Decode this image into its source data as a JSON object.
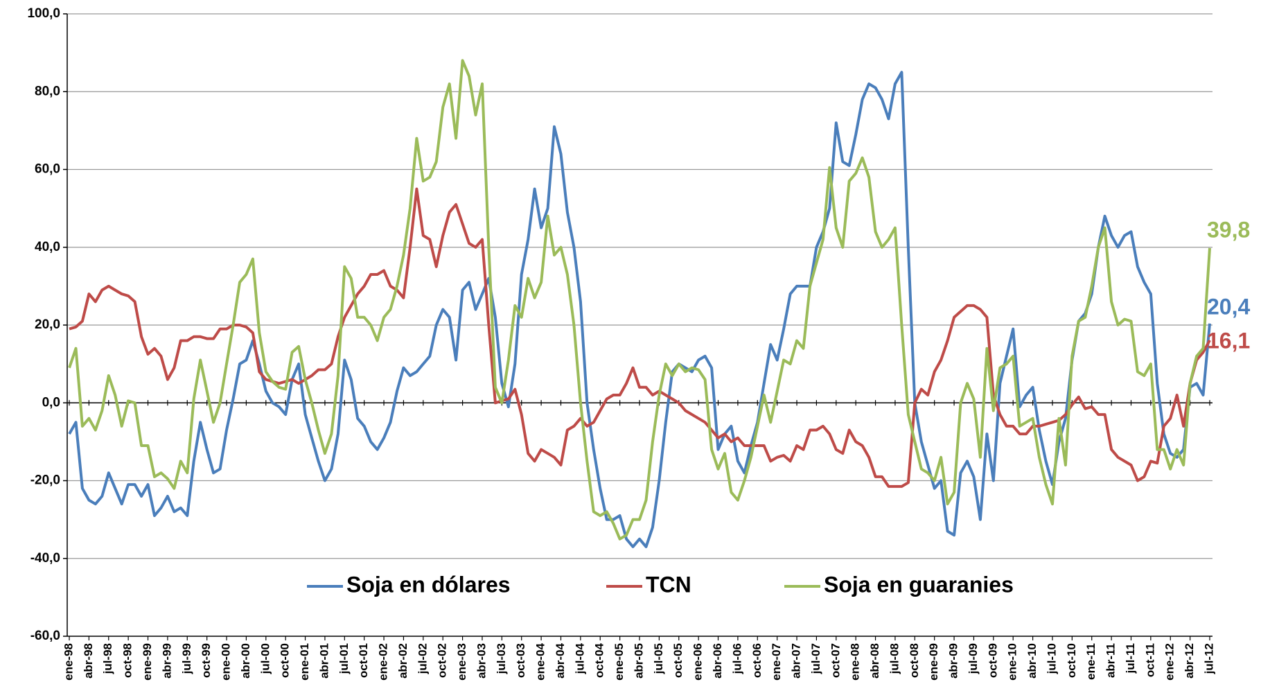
{
  "chart_data": {
    "type": "line",
    "categories": [
      "ene-98",
      null,
      null,
      "abr-98",
      null,
      null,
      "jul-98",
      null,
      null,
      "oct-98",
      null,
      null,
      "ene-99",
      null,
      null,
      "abr-99",
      null,
      null,
      "jul-99",
      null,
      null,
      "oct-99",
      null,
      null,
      "ene-00",
      null,
      null,
      "abr-00",
      null,
      null,
      "jul-00",
      null,
      null,
      "oct-00",
      null,
      null,
      "ene-01",
      null,
      null,
      "abr-01",
      null,
      null,
      "jul-01",
      null,
      null,
      "oct-01",
      null,
      null,
      "ene-02",
      null,
      null,
      "abr-02",
      null,
      null,
      "jul-02",
      null,
      null,
      "oct-02",
      null,
      null,
      "ene-03",
      null,
      null,
      "abr-03",
      null,
      null,
      "jul-03",
      null,
      null,
      "oct-03",
      null,
      null,
      "ene-04",
      null,
      null,
      "abr-04",
      null,
      null,
      "jul-04",
      null,
      null,
      "oct-04",
      null,
      null,
      "ene-05",
      null,
      null,
      "abr-05",
      null,
      null,
      "jul-05",
      null,
      null,
      "oct-05",
      null,
      null,
      "ene-06",
      null,
      null,
      "abr-06",
      null,
      null,
      "jul-06",
      null,
      null,
      "oct-06",
      null,
      null,
      "ene-07",
      null,
      null,
      "abr-07",
      null,
      null,
      "jul-07",
      null,
      null,
      "oct-07",
      null,
      null,
      "ene-08",
      null,
      null,
      "abr-08",
      null,
      null,
      "jul-08",
      null,
      null,
      "oct-08",
      null,
      null,
      "ene-09",
      null,
      null,
      "abr-09",
      null,
      null,
      "jul-09",
      null,
      null,
      "oct-09",
      null,
      null,
      "ene-10",
      null,
      null,
      "abr-10",
      null,
      null,
      "jul-10",
      null,
      null,
      "oct-10",
      null,
      null,
      "ene-11",
      null,
      null,
      "abr-11",
      null,
      null,
      "jul-11",
      null,
      null,
      "oct-11",
      null,
      null,
      "ene-12",
      null,
      null,
      "abr-12",
      null,
      null,
      "jul-12"
    ],
    "series": [
      {
        "name": "Soja en dólares",
        "color": "#4a7ebb",
        "end_label": "20,4",
        "values": [
          -8,
          -5,
          -22,
          -25,
          -26,
          -24,
          -18,
          -22,
          -26,
          -21,
          -21,
          -24,
          -21,
          -29,
          -27,
          -24,
          -28,
          -27,
          -29,
          -15,
          -5,
          -12,
          -18,
          -17,
          -7,
          1,
          10,
          11,
          16,
          10,
          3,
          0,
          -1,
          -3,
          6,
          10,
          -3,
          -9,
          -15,
          -20,
          -17,
          -8,
          11,
          6,
          -4,
          -6,
          -10,
          -12,
          -9,
          -5,
          3,
          9,
          7,
          8,
          10,
          12,
          20,
          24,
          22,
          11,
          29,
          31,
          24,
          28,
          32,
          22,
          5,
          -1,
          10,
          33,
          42,
          55,
          45,
          50,
          71,
          64,
          49,
          40,
          26,
          0,
          -12,
          -22,
          -30,
          -30,
          -29,
          -35,
          -37,
          -35,
          -37,
          -32,
          -20,
          -5,
          8,
          10,
          9,
          8,
          11,
          12,
          9,
          -12,
          -8,
          -6,
          -15,
          -18,
          -11,
          -5,
          5,
          15,
          11,
          19,
          28,
          30,
          30,
          30,
          40,
          44,
          50,
          72,
          62,
          61,
          69,
          78,
          82,
          81,
          78,
          73,
          82,
          85,
          40,
          0,
          -10,
          -16,
          -22,
          -20,
          -33,
          -34,
          -18,
          -15,
          -19,
          -30,
          -8,
          -20,
          5,
          12,
          19,
          -1,
          2,
          4,
          -7,
          -15,
          -21,
          -10,
          -4,
          11,
          21,
          23,
          28,
          40,
          48,
          43,
          40,
          43,
          44,
          35,
          31,
          28,
          5,
          -8,
          -13,
          -14,
          -12,
          4,
          5,
          2,
          20.4
        ]
      },
      {
        "name": "TCN",
        "color": "#be4b48",
        "end_label": "16,1",
        "values": [
          19,
          19.5,
          21,
          28,
          26,
          29,
          30,
          29,
          28,
          27.5,
          26,
          17,
          12.5,
          14,
          12,
          6,
          9,
          16,
          16,
          17,
          17,
          16.5,
          16.5,
          19,
          19,
          20,
          20,
          19.5,
          18,
          8,
          6,
          5.5,
          5,
          5.5,
          6,
          5,
          6,
          7,
          8.5,
          8.5,
          10,
          17,
          22,
          25,
          28,
          30,
          33,
          33,
          34,
          30,
          29,
          27,
          40,
          55,
          43,
          42,
          35,
          43,
          49,
          51,
          46,
          41,
          40,
          42,
          20,
          0,
          0.5,
          1,
          3.5,
          -3,
          -13,
          -15,
          -12,
          -13,
          -14,
          -16,
          -7,
          -6,
          -4,
          -6,
          -5,
          -2,
          1,
          2,
          2,
          5,
          9,
          4,
          4,
          2,
          3,
          2,
          1,
          0,
          -2,
          -3,
          -4,
          -5,
          -7,
          -9,
          -8,
          -10,
          -9,
          -11,
          -11,
          -11,
          -11,
          -15,
          -14,
          -13.5,
          -15,
          -11,
          -12,
          -7,
          -7,
          -6,
          -8,
          -12,
          -13,
          -7,
          -10,
          -11,
          -14,
          -19,
          -19,
          -21.5,
          -21.5,
          -21.5,
          -20.5,
          0,
          3.5,
          2,
          8,
          11,
          16,
          22,
          23.5,
          25,
          25,
          24,
          22,
          2,
          -3,
          -6,
          -6,
          -8,
          -8,
          -6,
          -6,
          -5.5,
          -5,
          -4.5,
          -3,
          -0.5,
          1.5,
          -1.5,
          -1,
          -3,
          -3,
          -12,
          -14,
          -15,
          -16,
          -20,
          -19,
          -15,
          -15.5,
          -6,
          -4,
          2,
          -6,
          5,
          11,
          13,
          16.1
        ]
      },
      {
        "name": "Soja en guaranies",
        "color": "#9bbb59",
        "end_label": "39,8",
        "values": [
          9,
          14,
          -6,
          -4,
          -7,
          -2,
          7,
          2,
          -6,
          0.5,
          0,
          -11,
          -11,
          -19,
          -18,
          -19.5,
          -22,
          -15,
          -18,
          1,
          11,
          3,
          -5,
          0,
          10,
          20,
          31,
          33,
          37,
          18,
          8,
          5.5,
          4,
          3.5,
          13,
          14.5,
          6,
          0,
          -7,
          -13,
          -8,
          7,
          35,
          32,
          22,
          22,
          20,
          16,
          22,
          24,
          30,
          38,
          50,
          68,
          57,
          58,
          62,
          76,
          82,
          68,
          88,
          84,
          74,
          82,
          40,
          4,
          0,
          11,
          25,
          22,
          32,
          27,
          31,
          48,
          38,
          40,
          33,
          20,
          0,
          -15,
          -28,
          -29,
          -28,
          -31,
          -35,
          -34,
          -30,
          -30,
          -25,
          -10,
          2,
          10,
          7,
          10,
          8,
          9,
          8.5,
          6,
          -12,
          -17,
          -13,
          -23,
          -25,
          -20,
          -14,
          -6,
          2,
          -5,
          3,
          11,
          10,
          16,
          14,
          30,
          36,
          42,
          60.5,
          45,
          40,
          57,
          59,
          63,
          58,
          44,
          40,
          42,
          45,
          20,
          -3,
          -10,
          -17,
          -18,
          -20,
          -14,
          -26,
          -23,
          0,
          5,
          1,
          -14,
          14,
          -2,
          9,
          10,
          12,
          -6,
          -5,
          -4,
          -14,
          -21,
          -26,
          -4,
          -16,
          12,
          21,
          22,
          30,
          40,
          45,
          26,
          20,
          21.5,
          21,
          8,
          7,
          10,
          -12,
          -12,
          -17,
          -12,
          -16,
          5,
          12,
          14,
          39.8
        ]
      }
    ],
    "ylim": [
      -60,
      100
    ],
    "yticks": [
      {
        "value": -60,
        "label": "-60,0"
      },
      {
        "value": -40,
        "label": "-40,0"
      },
      {
        "value": -20,
        "label": "-20,0"
      },
      {
        "value": 0,
        "label": "0,0"
      },
      {
        "value": 20,
        "label": "20,0"
      },
      {
        "value": 40,
        "label": "40,0"
      },
      {
        "value": 60,
        "label": "60,0"
      },
      {
        "value": 80,
        "label": "80,0"
      },
      {
        "value": 100,
        "label": "100,0"
      }
    ],
    "grid": true,
    "legend": "bottom"
  }
}
